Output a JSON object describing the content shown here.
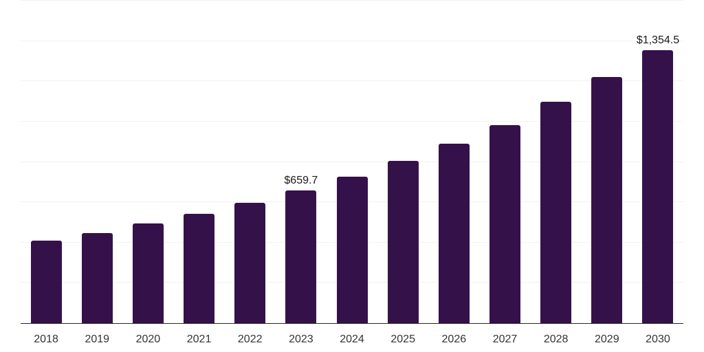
{
  "chart_data": {
    "type": "bar",
    "title": "",
    "xlabel": "",
    "ylabel": "",
    "categories": [
      "2018",
      "2019",
      "2020",
      "2021",
      "2022",
      "2023",
      "2024",
      "2025",
      "2026",
      "2027",
      "2028",
      "2029",
      "2030"
    ],
    "values": [
      408,
      447,
      496,
      543,
      597,
      659.7,
      728,
      806,
      890,
      984,
      1098,
      1220,
      1354.5
    ],
    "data_labels": [
      "",
      "",
      "",
      "",
      "",
      "$659.7",
      "",
      "",
      "",
      "",
      "",
      "",
      "$1,354.5"
    ],
    "ylim": [
      0,
      1600
    ],
    "gridline_step": 200,
    "grid": true,
    "legend": false,
    "y_axis_labels_visible": false,
    "colors": {
      "bar": "#35114A",
      "gridline": "#F2F2F2",
      "axis_line": "#262626",
      "tick_label": "#333333",
      "data_label": "#1A1A1A",
      "background": "#FFFFFF"
    }
  }
}
